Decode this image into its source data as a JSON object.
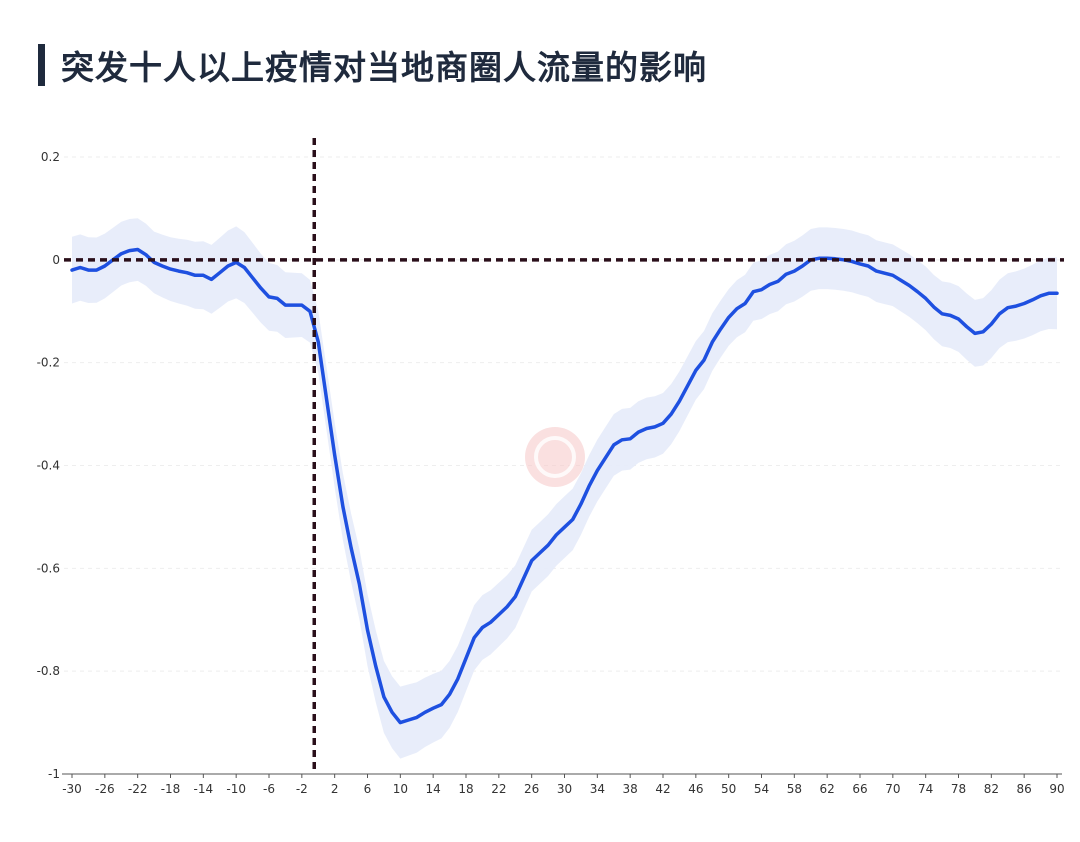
{
  "title": "突发十人以上疫情对当地商圈人流量的影响",
  "chart_data": {
    "type": "line",
    "title": "突发十人以上疫情对当地商圈人流量的影响",
    "xlabel": "",
    "ylabel": "",
    "xlim": [
      -30,
      90
    ],
    "ylim": [
      -1,
      0.2
    ],
    "x_ticks": [
      "-30",
      "-26",
      "-22",
      "-18",
      "-14",
      "-10",
      "-6",
      "-2",
      "2",
      "6",
      "10",
      "14",
      "18",
      "22",
      "26",
      "30",
      "34",
      "38",
      "42",
      "46",
      "50",
      "54",
      "58",
      "62",
      "66",
      "70",
      "74",
      "78",
      "82",
      "86",
      "90"
    ],
    "y_ticks": [
      "0.2",
      "0",
      "-0.2",
      "-0.4",
      "-0.6",
      "-0.8",
      "-1"
    ],
    "grid": "horizontal dashed",
    "reference_lines": {
      "x": 0,
      "y": 0
    },
    "series": [
      {
        "line_color": "#1e50e0",
        "band_color": "#e5ebfa",
        "points": [
          [
            -30,
            -0.02
          ],
          [
            -29,
            -0.015
          ],
          [
            -28,
            -0.02
          ],
          [
            -27,
            -0.02
          ],
          [
            -26,
            -0.012
          ],
          [
            -25,
            0.0
          ],
          [
            -24,
            0.012
          ],
          [
            -23,
            0.018
          ],
          [
            -22,
            0.02
          ],
          [
            -21,
            0.01
          ],
          [
            -20,
            -0.005
          ],
          [
            -19,
            -0.012
          ],
          [
            -18,
            -0.018
          ],
          [
            -17,
            -0.022
          ],
          [
            -16,
            -0.025
          ],
          [
            -15,
            -0.03
          ],
          [
            -14,
            -0.03
          ],
          [
            -13,
            -0.038
          ],
          [
            -12,
            -0.025
          ],
          [
            -11,
            -0.012
          ],
          [
            -10,
            -0.005
          ],
          [
            -9,
            -0.015
          ],
          [
            -8,
            -0.035
          ],
          [
            -7,
            -0.055
          ],
          [
            -6,
            -0.072
          ],
          [
            -5,
            -0.075
          ],
          [
            -4,
            -0.088
          ],
          [
            -3,
            -0.088
          ],
          [
            -2,
            -0.088
          ],
          [
            -1,
            -0.1
          ],
          [
            0,
            -0.16
          ],
          [
            1,
            -0.27
          ],
          [
            2,
            -0.38
          ],
          [
            3,
            -0.48
          ],
          [
            4,
            -0.56
          ],
          [
            5,
            -0.63
          ],
          [
            6,
            -0.72
          ],
          [
            7,
            -0.79
          ],
          [
            8,
            -0.85
          ],
          [
            9,
            -0.88
          ],
          [
            10,
            -0.9
          ],
          [
            11,
            -0.895
          ],
          [
            12,
            -0.89
          ],
          [
            13,
            -0.88
          ],
          [
            14,
            -0.872
          ],
          [
            15,
            -0.865
          ],
          [
            16,
            -0.845
          ],
          [
            17,
            -0.815
          ],
          [
            18,
            -0.775
          ],
          [
            19,
            -0.735
          ],
          [
            20,
            -0.715
          ],
          [
            21,
            -0.705
          ],
          [
            22,
            -0.69
          ],
          [
            23,
            -0.675
          ],
          [
            24,
            -0.655
          ],
          [
            25,
            -0.62
          ],
          [
            26,
            -0.585
          ],
          [
            27,
            -0.57
          ],
          [
            28,
            -0.555
          ],
          [
            29,
            -0.535
          ],
          [
            30,
            -0.52
          ],
          [
            31,
            -0.505
          ],
          [
            32,
            -0.475
          ],
          [
            33,
            -0.44
          ],
          [
            34,
            -0.41
          ],
          [
            35,
            -0.385
          ],
          [
            36,
            -0.36
          ],
          [
            37,
            -0.35
          ],
          [
            38,
            -0.348
          ],
          [
            39,
            -0.335
          ],
          [
            40,
            -0.328
          ],
          [
            41,
            -0.325
          ],
          [
            42,
            -0.318
          ],
          [
            43,
            -0.3
          ],
          [
            44,
            -0.275
          ],
          [
            45,
            -0.245
          ],
          [
            46,
            -0.215
          ],
          [
            47,
            -0.195
          ],
          [
            48,
            -0.16
          ],
          [
            49,
            -0.135
          ],
          [
            50,
            -0.112
          ],
          [
            51,
            -0.095
          ],
          [
            52,
            -0.085
          ],
          [
            53,
            -0.062
          ],
          [
            54,
            -0.058
          ],
          [
            55,
            -0.048
          ],
          [
            56,
            -0.042
          ],
          [
            57,
            -0.028
          ],
          [
            58,
            -0.022
          ],
          [
            59,
            -0.012
          ],
          [
            60,
            0.0
          ],
          [
            61,
            0.003
          ],
          [
            62,
            0.003
          ],
          [
            63,
            0.002
          ],
          [
            64,
            0.0
          ],
          [
            65,
            -0.003
          ],
          [
            66,
            -0.008
          ],
          [
            67,
            -0.012
          ],
          [
            68,
            -0.022
          ],
          [
            69,
            -0.026
          ],
          [
            70,
            -0.03
          ],
          [
            71,
            -0.04
          ],
          [
            72,
            -0.05
          ],
          [
            73,
            -0.062
          ],
          [
            74,
            -0.075
          ],
          [
            75,
            -0.092
          ],
          [
            76,
            -0.105
          ],
          [
            77,
            -0.108
          ],
          [
            78,
            -0.115
          ],
          [
            79,
            -0.13
          ],
          [
            80,
            -0.143
          ],
          [
            81,
            -0.14
          ],
          [
            82,
            -0.125
          ],
          [
            83,
            -0.105
          ],
          [
            84,
            -0.093
          ],
          [
            85,
            -0.09
          ],
          [
            86,
            -0.085
          ],
          [
            87,
            -0.078
          ],
          [
            88,
            -0.07
          ],
          [
            89,
            -0.065
          ],
          [
            90,
            -0.065
          ]
        ],
        "band_halfwidth": [
          [
            -30,
            0.065
          ],
          [
            -20,
            0.06
          ],
          [
            -10,
            0.07
          ],
          [
            0,
            0.06
          ],
          [
            6,
            0.07
          ],
          [
            10,
            0.07
          ],
          [
            16,
            0.065
          ],
          [
            26,
            0.06
          ],
          [
            40,
            0.06
          ],
          [
            50,
            0.055
          ],
          [
            60,
            0.06
          ],
          [
            70,
            0.06
          ],
          [
            80,
            0.065
          ],
          [
            90,
            0.07
          ]
        ]
      }
    ]
  }
}
